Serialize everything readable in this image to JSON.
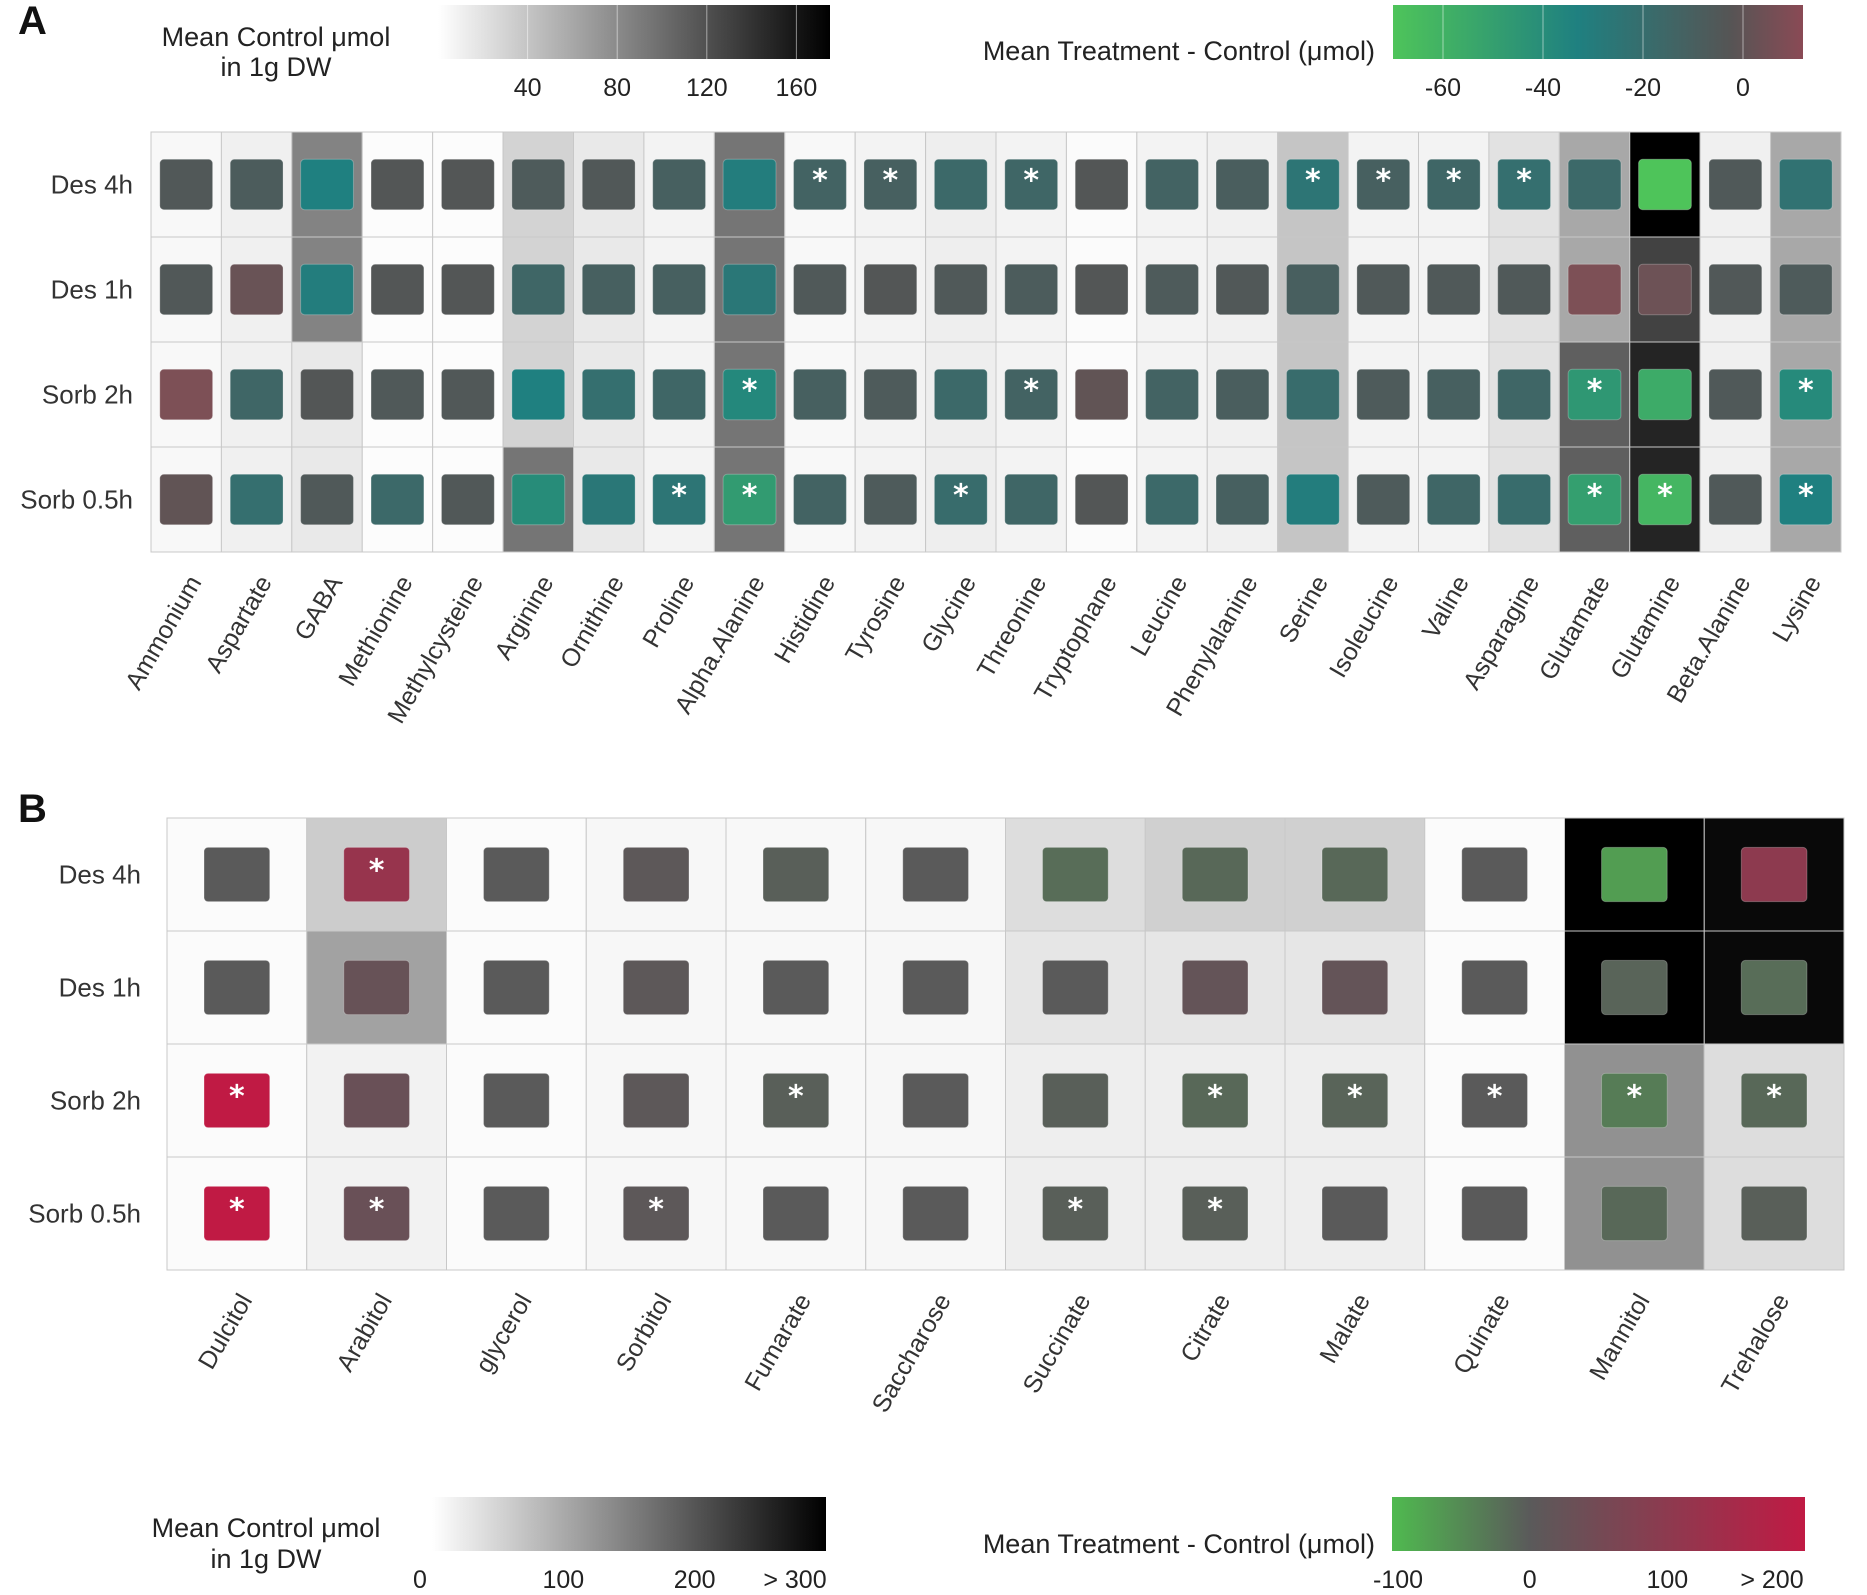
{
  "figure": {
    "panel_labels": [
      "A",
      "B"
    ]
  },
  "colors": {
    "bg_gray_low": "#ffffff",
    "bg_gray_high": "#000000",
    "diff_A_neg": "#4ec45a",
    "diff_A_mid": "#1f8080",
    "diff_A_zero": "#555555",
    "diff_A_pos": "#7d5056",
    "diff_B_neg": "#4fba4f",
    "diff_B_zero": "#5a5a5a",
    "diff_B_pos": "#c01a44"
  },
  "chart_data": [
    {
      "type": "heatmap",
      "panel": "A",
      "rows": [
        "Des 4h",
        "Des 1h",
        "Sorb 2h",
        "Sorb 0.5h"
      ],
      "columns": [
        "Ammonium",
        "Aspartate",
        "GABA",
        "Methionine",
        "Methylcysteine",
        "Arginine",
        "Ornithine",
        "Proline",
        "Alpha.Alanine",
        "Histidine",
        "Tyrosine",
        "Glycine",
        "Threonine",
        "Tryptophane",
        "Leucine",
        "Phenylalanine",
        "Serine",
        "Isoleucine",
        "Valine",
        "Asparagine",
        "Glutamate",
        "Glutamine",
        "Beta.Alanine",
        "Lysine"
      ],
      "legend_control": {
        "title": [
          "Mean Control μmol",
          "in 1g DW"
        ],
        "ticks": [
          40,
          80,
          120,
          160
        ],
        "range": [
          0,
          175
        ]
      },
      "legend_difference": {
        "title": "Mean Treatment - Control (μmol)",
        "ticks": [
          -60,
          -40,
          -20,
          0
        ],
        "range": [
          -70,
          12
        ]
      },
      "control": [
        [
          5,
          10,
          85,
          2,
          2,
          30,
          15,
          8,
          95,
          5,
          8,
          12,
          8,
          3,
          8,
          10,
          40,
          8,
          8,
          20,
          60,
          175,
          10,
          60
        ],
        [
          5,
          10,
          85,
          2,
          2,
          30,
          15,
          8,
          95,
          5,
          8,
          12,
          8,
          3,
          8,
          10,
          40,
          8,
          8,
          20,
          60,
          130,
          10,
          60
        ],
        [
          5,
          10,
          15,
          2,
          2,
          30,
          15,
          8,
          95,
          5,
          8,
          12,
          8,
          3,
          8,
          10,
          40,
          8,
          8,
          20,
          110,
          150,
          10,
          60
        ],
        [
          5,
          10,
          15,
          2,
          2,
          95,
          15,
          8,
          95,
          5,
          8,
          12,
          8,
          3,
          8,
          10,
          40,
          8,
          8,
          20,
          110,
          150,
          10,
          60
        ]
      ],
      "difference": [
        [
          -2,
          -5,
          -30,
          -1,
          -1,
          -4,
          -2,
          -8,
          -28,
          -10,
          -8,
          -14,
          -12,
          -1,
          -10,
          -6,
          -22,
          -8,
          -12,
          -18,
          -14,
          -65,
          -3,
          -20
        ],
        [
          -2,
          5,
          -28,
          -1,
          -1,
          -12,
          -8,
          -8,
          -24,
          -3,
          -1,
          -3,
          -5,
          -1,
          -4,
          -2,
          -7,
          -3,
          -3,
          -3,
          10,
          6,
          -2,
          -4
        ],
        [
          10,
          -12,
          -1,
          -3,
          -2,
          -30,
          -18,
          -12,
          -34,
          -8,
          -4,
          -14,
          -10,
          3,
          -10,
          -6,
          -16,
          -4,
          -8,
          -12,
          -42,
          -52,
          -3,
          -35
        ],
        [
          3,
          -18,
          -3,
          -14,
          -2,
          -36,
          -24,
          -22,
          -44,
          -10,
          -4,
          -16,
          -12,
          -1,
          -14,
          -8,
          -28,
          -4,
          -12,
          -16,
          -46,
          -58,
          -3,
          -30
        ]
      ],
      "significant": [
        [
          9,
          10,
          12,
          16,
          17,
          18,
          19
        ],
        [],
        [
          8,
          12,
          20,
          23
        ],
        [
          7,
          8,
          11,
          20,
          21,
          23
        ]
      ]
    },
    {
      "type": "heatmap",
      "panel": "B",
      "rows": [
        "Des 4h",
        "Des 1h",
        "Sorb 2h",
        "Sorb 0.5h"
      ],
      "columns": [
        "Dulcitol",
        "Arabitol",
        "glycerol",
        "Sorbitol",
        "Fumarate",
        "Saccharose",
        "Succinate",
        "Citrate",
        "Malate",
        "Quinate",
        "Mannitol",
        "Trehalose"
      ],
      "legend_control": {
        "title": [
          "Mean Control μmol",
          "in 1g DW"
        ],
        "ticks": [
          "0",
          "100",
          "200",
          "> 300"
        ],
        "range": [
          0,
          300
        ]
      },
      "legend_difference": {
        "title": "Mean Treatment - Control (μmol)",
        "ticks": [
          "-100",
          "0",
          "100",
          "> 200"
        ],
        "range": [
          -100,
          200
        ]
      },
      "control": [
        [
          5,
          60,
          5,
          10,
          8,
          10,
          40,
          55,
          55,
          5,
          300,
          290
        ],
        [
          5,
          110,
          5,
          10,
          8,
          10,
          30,
          30,
          30,
          5,
          300,
          290
        ],
        [
          5,
          15,
          5,
          10,
          8,
          10,
          20,
          20,
          20,
          5,
          130,
          40
        ],
        [
          5,
          15,
          5,
          10,
          8,
          10,
          20,
          20,
          20,
          5,
          130,
          40
        ]
      ],
      "difference": [
        [
          0,
          120,
          0,
          5,
          -5,
          0,
          -20,
          -15,
          -15,
          0,
          -70,
          100
        ],
        [
          0,
          25,
          0,
          5,
          0,
          0,
          0,
          20,
          20,
          0,
          -10,
          -20
        ],
        [
          200,
          30,
          0,
          5,
          -5,
          0,
          -5,
          -15,
          -10,
          0,
          -35,
          -15
        ],
        [
          200,
          30,
          0,
          5,
          0,
          0,
          -5,
          -5,
          0,
          0,
          -15,
          -5
        ]
      ],
      "significant": [
        [
          1
        ],
        [],
        [
          0,
          4,
          7,
          8,
          9,
          10,
          11
        ],
        [
          0,
          1,
          3,
          6,
          7
        ]
      ]
    }
  ]
}
